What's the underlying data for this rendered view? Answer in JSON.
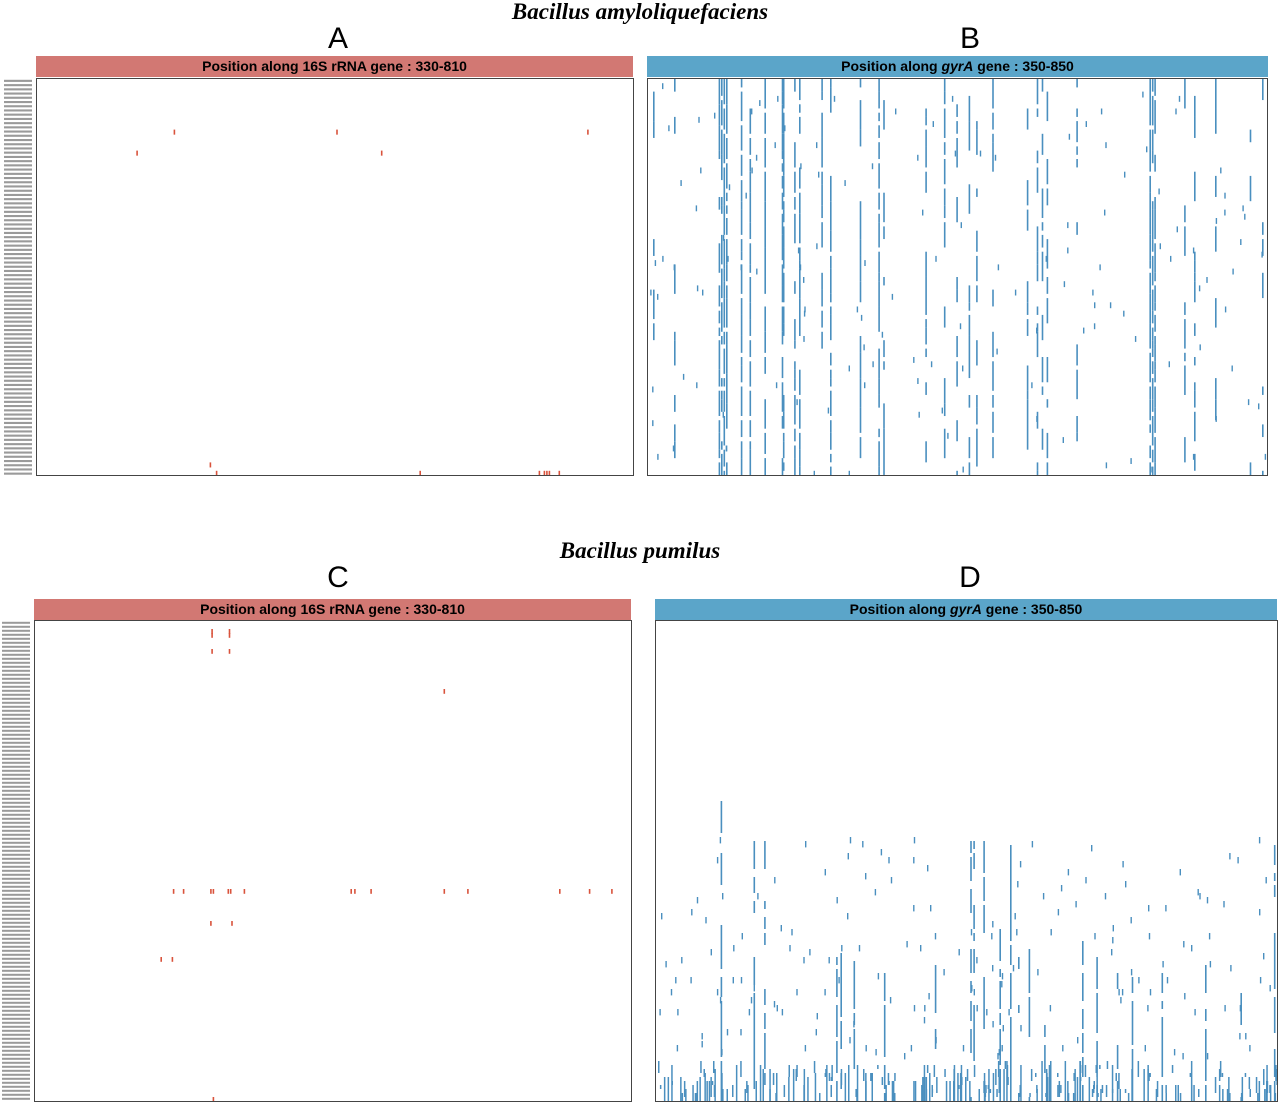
{
  "figure": {
    "top_species": "Bacillus amyloliquefaciens",
    "bottom_species": "Bacillus pumilus"
  },
  "panels": {
    "A": {
      "letter": "A",
      "strip_prefix": "Position along 16S rRNA gene : 330-810",
      "strip_italic": "",
      "strip_suffix": ""
    },
    "B": {
      "letter": "B",
      "strip_prefix": "Position along ",
      "strip_italic": "gyrA",
      "strip_suffix": " gene : 350-850"
    },
    "C": {
      "letter": "C",
      "strip_prefix": "Position along 16S rRNA gene : 330-810",
      "strip_italic": "",
      "strip_suffix": ""
    },
    "D": {
      "letter": "D",
      "strip_prefix": "Position along ",
      "strip_italic": "gyrA",
      "strip_suffix": " gene : 350-850"
    }
  },
  "colors": {
    "rrna": "#d9533c",
    "gyra": "#4a8fbf",
    "strip_rrna": "#d27873",
    "strip_gyra": "#5ba5c9"
  },
  "chart_data": [
    {
      "panel": "A",
      "type": "heatmap",
      "title": "Position along 16S rRNA gene : 330-810",
      "x_range": [
        330,
        810
      ],
      "n_rows": 94,
      "marks": [
        {
          "pos": 440,
          "row": 12
        },
        {
          "pos": 571,
          "row": 12
        },
        {
          "pos": 773,
          "row": 12
        },
        {
          "pos": 410,
          "row": 17
        },
        {
          "pos": 607,
          "row": 17
        },
        {
          "pos": 469,
          "row": 91
        },
        {
          "pos": 474,
          "row": 93
        },
        {
          "pos": 638,
          "row": 93
        },
        {
          "pos": 734,
          "row": 93
        },
        {
          "pos": 738,
          "row": 93
        },
        {
          "pos": 740,
          "row": 93
        },
        {
          "pos": 742,
          "row": 93
        },
        {
          "pos": 750,
          "row": 93
        }
      ]
    },
    {
      "panel": "B",
      "type": "heatmap",
      "title": "Position along gyrA gene : 350-850",
      "x_range": [
        350,
        850
      ],
      "n_rows": 94,
      "columns": [
        {
          "pos": 354,
          "rows": "sparse"
        },
        {
          "pos": 371,
          "rows": "sparse"
        },
        {
          "pos": 407,
          "rows": "dense"
        },
        {
          "pos": 409,
          "rows": "dense"
        },
        {
          "pos": 411,
          "rows": "dense"
        },
        {
          "pos": 413,
          "rows": "dense"
        },
        {
          "pos": 425,
          "rows": "dense"
        },
        {
          "pos": 432,
          "rows": "dense"
        },
        {
          "pos": 444,
          "rows": "dense"
        },
        {
          "pos": 458,
          "rows": "dense"
        },
        {
          "pos": 459,
          "rows": "dense"
        },
        {
          "pos": 468,
          "rows": "dense"
        },
        {
          "pos": 472,
          "rows": "dense"
        },
        {
          "pos": 490,
          "rows": "medium"
        },
        {
          "pos": 497,
          "rows": "dense"
        },
        {
          "pos": 521,
          "rows": "medium"
        },
        {
          "pos": 536,
          "rows": "dense"
        },
        {
          "pos": 540,
          "rows": "medium"
        },
        {
          "pos": 574,
          "rows": "medium"
        },
        {
          "pos": 589,
          "rows": "medium"
        },
        {
          "pos": 599,
          "rows": "medium"
        },
        {
          "pos": 609,
          "rows": "medium"
        },
        {
          "pos": 615,
          "rows": "medium"
        },
        {
          "pos": 628,
          "rows": "medium"
        },
        {
          "pos": 656,
          "rows": "medium"
        },
        {
          "pos": 664,
          "rows": "medium"
        },
        {
          "pos": 668,
          "rows": "medium"
        },
        {
          "pos": 672,
          "rows": "medium"
        },
        {
          "pos": 696,
          "rows": "medium"
        },
        {
          "pos": 755,
          "rows": "dense"
        },
        {
          "pos": 757,
          "rows": "dense"
        },
        {
          "pos": 759,
          "rows": "dense"
        },
        {
          "pos": 783,
          "rows": "medium"
        },
        {
          "pos": 791,
          "rows": "medium"
        },
        {
          "pos": 808,
          "rows": "medium"
        },
        {
          "pos": 836,
          "rows": "sparse"
        },
        {
          "pos": 846,
          "rows": "sparse"
        }
      ]
    },
    {
      "panel": "C",
      "type": "heatmap",
      "title": "Position along 16S rRNA gene : 330-810",
      "x_range": [
        330,
        810
      ],
      "n_rows": 120,
      "marks": [
        {
          "pos": 472,
          "row": 2
        },
        {
          "pos": 472,
          "row": 3
        },
        {
          "pos": 486,
          "row": 2
        },
        {
          "pos": 486,
          "row": 3
        },
        {
          "pos": 472,
          "row": 7
        },
        {
          "pos": 486,
          "row": 7
        },
        {
          "pos": 659,
          "row": 17
        },
        {
          "pos": 441,
          "row": 67
        },
        {
          "pos": 449,
          "row": 67
        },
        {
          "pos": 471,
          "row": 67
        },
        {
          "pos": 473,
          "row": 67
        },
        {
          "pos": 485,
          "row": 67
        },
        {
          "pos": 487,
          "row": 67
        },
        {
          "pos": 498,
          "row": 67
        },
        {
          "pos": 584,
          "row": 67
        },
        {
          "pos": 587,
          "row": 67
        },
        {
          "pos": 600,
          "row": 67
        },
        {
          "pos": 659,
          "row": 67
        },
        {
          "pos": 678,
          "row": 67
        },
        {
          "pos": 752,
          "row": 67
        },
        {
          "pos": 776,
          "row": 67
        },
        {
          "pos": 794,
          "row": 67
        },
        {
          "pos": 471,
          "row": 75
        },
        {
          "pos": 488,
          "row": 75
        },
        {
          "pos": 431,
          "row": 84
        },
        {
          "pos": 440,
          "row": 84
        },
        {
          "pos": 473,
          "row": 119
        }
      ]
    },
    {
      "panel": "D",
      "type": "heatmap",
      "title": "Position along gyrA gene : 350-850",
      "x_range": [
        350,
        850
      ],
      "n_rows": 120
    }
  ]
}
